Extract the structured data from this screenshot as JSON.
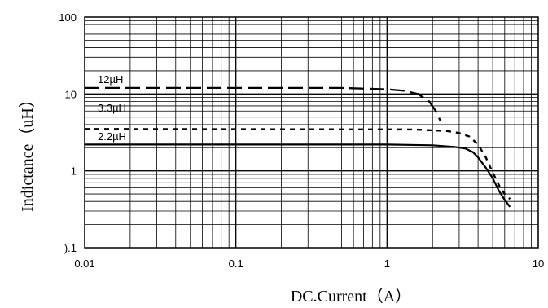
{
  "chart_data": {
    "type": "line",
    "title": "",
    "xlabel": "DC.Current（A）",
    "ylabel": "Indictance（uH）",
    "xscale": "log",
    "yscale": "log",
    "xlim": [
      0.01,
      10
    ],
    "ylim": [
      0.1,
      100
    ],
    "grid": true,
    "x_ticks": [
      "0.01",
      "0.1",
      "1",
      "10"
    ],
    "y_ticks": [
      "100",
      "10",
      "1",
      ").1"
    ],
    "series": [
      {
        "name": "12µH",
        "style": "long-dash",
        "x": [
          0.01,
          0.5,
          1.0,
          1.3,
          1.6,
          1.9,
          2.1,
          2.25
        ],
        "y": [
          12,
          12,
          11.5,
          11,
          10,
          8,
          6,
          4.5
        ]
      },
      {
        "name": "3.3µH",
        "style": "short-dash",
        "x": [
          0.01,
          1.5,
          2.5,
          3.0,
          3.5,
          4.0,
          4.5,
          5.0,
          5.5,
          6.0,
          6.5
        ],
        "y": [
          3.5,
          3.45,
          3.3,
          3.1,
          2.8,
          2.2,
          1.5,
          0.95,
          0.65,
          0.5,
          0.43
        ]
      },
      {
        "name": "2.2µH",
        "style": "solid",
        "x": [
          0.01,
          1.0,
          2.0,
          2.8,
          3.3,
          3.7,
          4.0,
          4.5,
          5.0,
          5.5,
          6.0,
          6.5
        ],
        "y": [
          2.2,
          2.2,
          2.15,
          2.05,
          1.95,
          1.75,
          1.5,
          1.1,
          0.8,
          0.55,
          0.42,
          0.34
        ]
      }
    ]
  }
}
